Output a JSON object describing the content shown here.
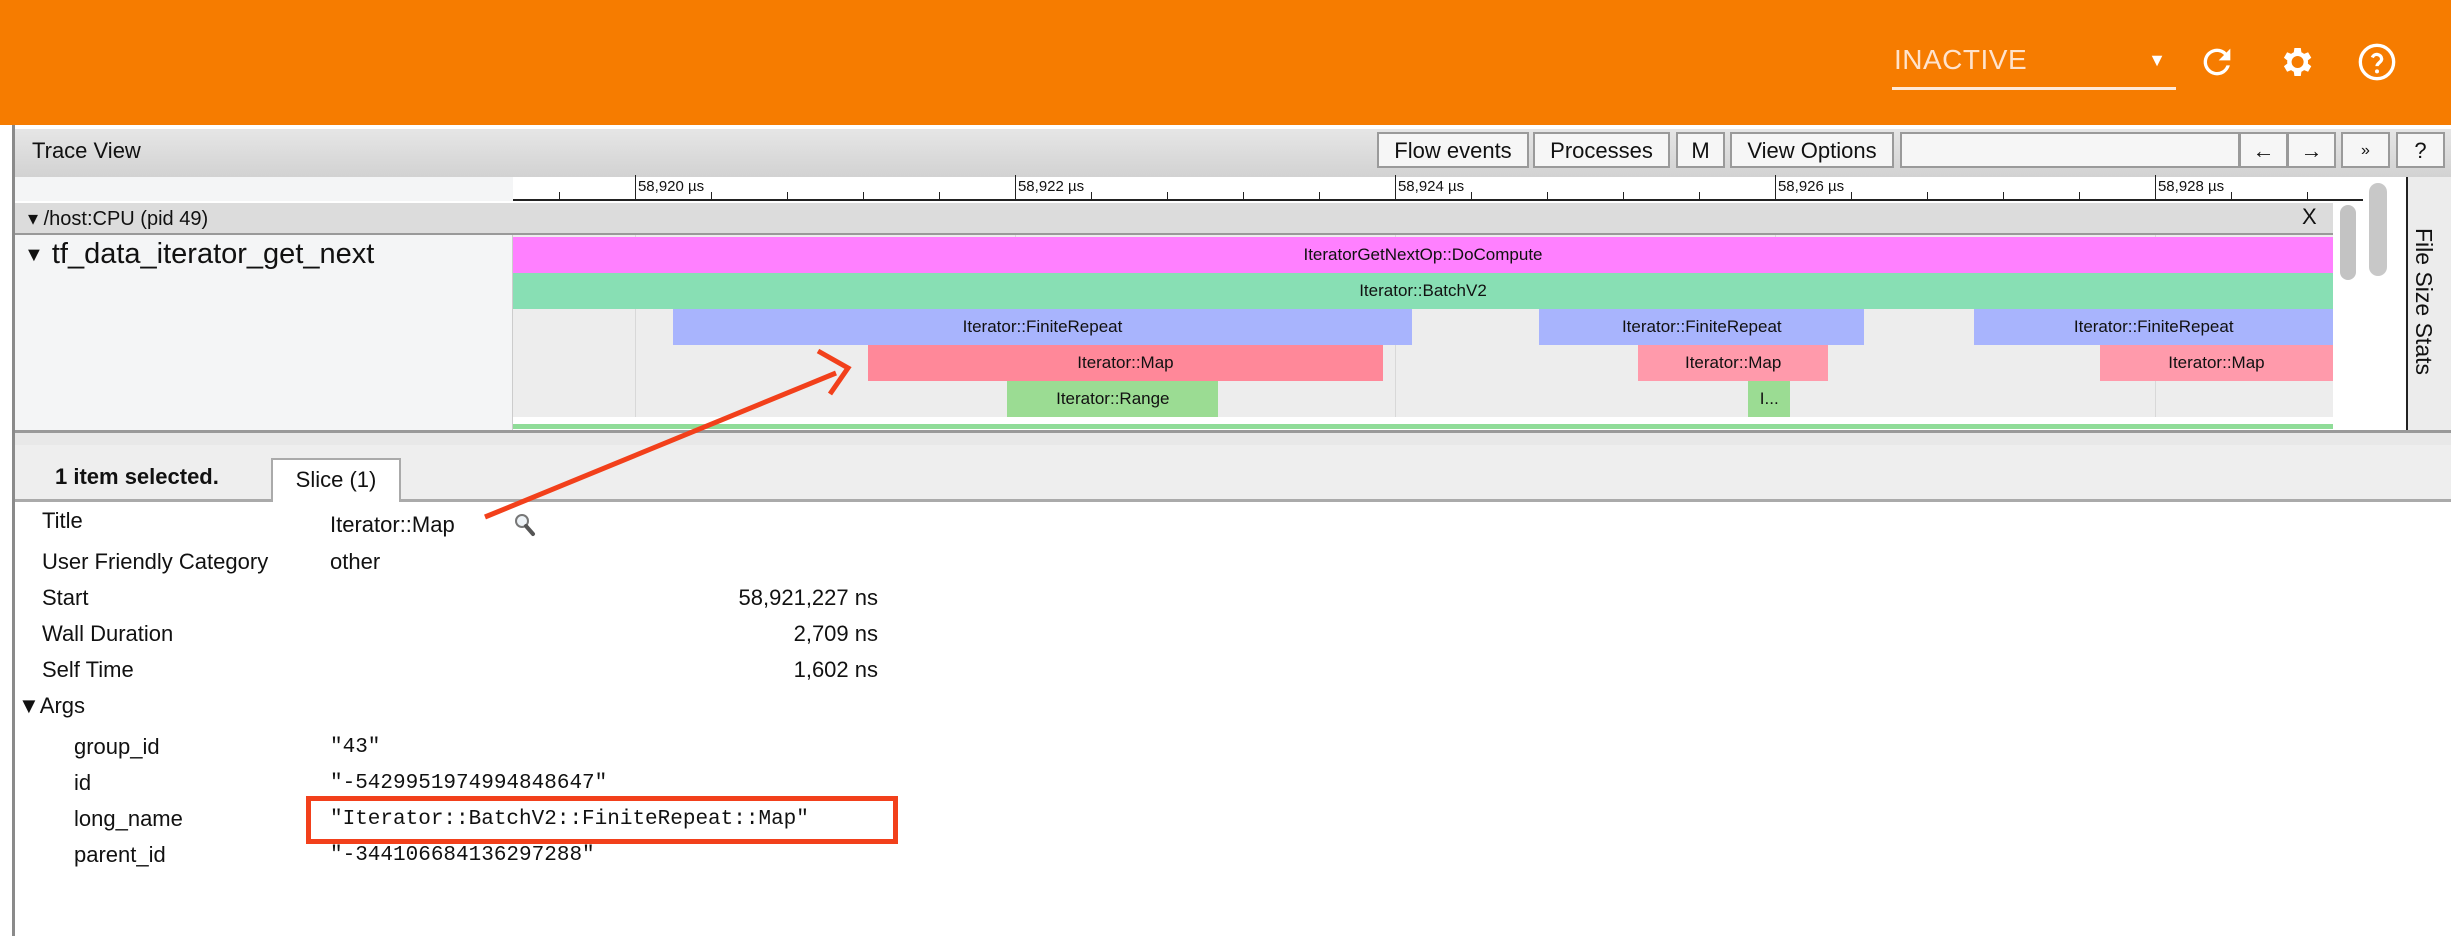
{
  "topbar": {
    "run_select_value": "INACTIVE",
    "caret_icon": "dropdown-triangle",
    "icons": [
      "refresh-icon",
      "gear-icon",
      "help-circle-icon"
    ],
    "color": "#f67c00"
  },
  "trace_view": {
    "title": "Trace View",
    "buttons": {
      "flow_events": "Flow events",
      "processes": "Processes",
      "m": "M",
      "view_options": "View Options",
      "prev": "←",
      "next": "→",
      "more": "»",
      "help": "?"
    },
    "search_value": ""
  },
  "ruler": {
    "unit": "µs",
    "view_range_us": [
      58919.358,
      58928.937
    ],
    "major_ticks": [
      {
        "t": 58920,
        "label": "58,920 µs"
      },
      {
        "t": 58922,
        "label": "58,922 µs"
      },
      {
        "t": 58924,
        "label": "58,924 µs"
      },
      {
        "t": 58926,
        "label": "58,926 µs"
      },
      {
        "t": 58928,
        "label": "58,928 µs"
      }
    ],
    "minor_step_us": 0.4
  },
  "process": {
    "label": "/host:CPU (pid 49)",
    "close": "X"
  },
  "track": {
    "label": "tf_data_iterator_get_next",
    "slices": [
      {
        "name": "IteratorGetNextOp::DoCompute",
        "label": "IteratorGetNextOp::DoCompute",
        "depth": 0,
        "start": 58919.3,
        "end": 58929.5,
        "color": "#ff80ff"
      },
      {
        "name": "Iterator::BatchV2",
        "label": "Iterator::BatchV2",
        "depth": 1,
        "start": 58919.3,
        "end": 58929.5,
        "color": "#88dfb4"
      },
      {
        "name": "Iterator::FiniteRepeat",
        "label": "Iterator::FiniteRepeat",
        "depth": 2,
        "start": 58920.2,
        "end": 58924.09,
        "color": "#a8b4fd"
      },
      {
        "name": "Iterator::FiniteRepeat",
        "label": "Iterator::FiniteRepeat",
        "depth": 2,
        "start": 58924.76,
        "end": 58926.47,
        "color": "#a8b4fd"
      },
      {
        "name": "Iterator::FiniteRepeat",
        "label": "Iterator::FiniteRepeat",
        "depth": 2,
        "start": 58927.05,
        "end": 58929.5,
        "color": "#a8b4fd"
      },
      {
        "name": "Iterator::Map",
        "label": "Iterator::Map",
        "depth": 3,
        "start": 58921.227,
        "end": 58923.936,
        "color": "#ff8899",
        "selected": true
      },
      {
        "name": "Iterator::Map",
        "label": "Iterator::Map",
        "depth": 3,
        "start": 58925.28,
        "end": 58926.28,
        "color": "#ff9aab"
      },
      {
        "name": "Iterator::Map",
        "label": "Iterator::Map",
        "depth": 3,
        "start": 58927.71,
        "end": 58929.5,
        "color": "#ff9aab"
      },
      {
        "name": "Iterator::Range",
        "label": "Iterator::Range",
        "depth": 4,
        "start": 58921.96,
        "end": 58923.07,
        "color": "#9bdc93"
      },
      {
        "name": "Iterator::Range",
        "label": "I...",
        "depth": 4,
        "start": 58925.86,
        "end": 58926.08,
        "color": "#9bdc93"
      }
    ]
  },
  "side_panel": {
    "label": "File Size Stats"
  },
  "details": {
    "selection_summary": "1 item selected.",
    "tab": "Slice (1)",
    "rows": {
      "title": {
        "label": "Title",
        "value": "Iterator::Map"
      },
      "category": {
        "label": "User Friendly Category",
        "value": "other"
      },
      "start": {
        "label": "Start",
        "value": "58,921,227 ns"
      },
      "wall": {
        "label": "Wall Duration",
        "value": "2,709 ns"
      },
      "self": {
        "label": "Self Time",
        "value": "1,602 ns"
      }
    },
    "args_label": "▼Args",
    "args": {
      "group_id": {
        "label": "group_id",
        "value": "\"43\""
      },
      "id": {
        "label": "id",
        "value": "\"-5429951974994848647\""
      },
      "long_name": {
        "label": "long_name",
        "value": "\"Iterator::BatchV2::FiniteRepeat::Map\""
      },
      "parent_id": {
        "label": "parent_id",
        "value": "\"-344106684136297288\""
      }
    },
    "annotation_color": "#f2401b"
  }
}
